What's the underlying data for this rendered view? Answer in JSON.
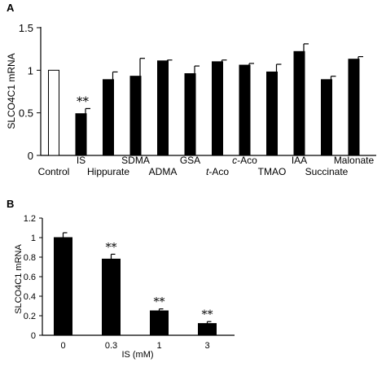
{
  "chart_data": [
    {
      "panel": "A",
      "type": "bar",
      "ylabel": "SLCO4C1 mRNA",
      "ylim": [
        0,
        1.5
      ],
      "yticks": [
        "0",
        "0.5",
        "1",
        "1.5"
      ],
      "categories": [
        "Control",
        "IS",
        "Hippurate",
        "SDMA",
        "ADMA",
        "GSA",
        "t-Aco",
        "c-Aco",
        "TMAO",
        "IAA",
        "Succinate",
        "Malonate"
      ],
      "values": [
        1.0,
        0.49,
        0.89,
        0.93,
        1.11,
        0.96,
        1.1,
        1.06,
        0.98,
        1.22,
        0.89,
        1.13
      ],
      "errors": [
        0.0,
        0.06,
        0.09,
        0.21,
        0.01,
        0.09,
        0.02,
        0.02,
        0.09,
        0.09,
        0.04,
        0.03
      ],
      "bar_colors": [
        "#ffffff",
        "#000000",
        "#000000",
        "#000000",
        "#000000",
        "#000000",
        "#000000",
        "#000000",
        "#000000",
        "#000000",
        "#000000",
        "#000000"
      ],
      "significance": [
        "",
        "**",
        "",
        "",
        "",
        "",
        "",
        "",
        "",
        "",
        "",
        ""
      ],
      "category_styles": [
        "normal",
        "normal",
        "normal",
        "normal",
        "normal",
        "normal",
        "italic-prefix",
        "italic-prefix",
        "normal",
        "normal",
        "normal",
        "normal"
      ],
      "grid": false
    },
    {
      "panel": "B",
      "type": "bar",
      "xlabel": "IS (mM)",
      "ylabel": "SLCO4C1 mRNA",
      "ylim": [
        0,
        1.2
      ],
      "yticks": [
        "0",
        "0.2",
        "0.4",
        "0.6",
        "0.8",
        "1",
        "1.2"
      ],
      "categories": [
        "0",
        "0.3",
        "1",
        "3"
      ],
      "values": [
        1.0,
        0.78,
        0.25,
        0.12
      ],
      "errors": [
        0.05,
        0.05,
        0.02,
        0.02
      ],
      "bar_colors": [
        "#000000",
        "#000000",
        "#000000",
        "#000000"
      ],
      "significance": [
        "",
        "**",
        "**",
        "**"
      ],
      "grid": false
    }
  ],
  "colors": {
    "axis": "#000000",
    "bar_fill": "#000000",
    "control_fill": "#ffffff"
  }
}
